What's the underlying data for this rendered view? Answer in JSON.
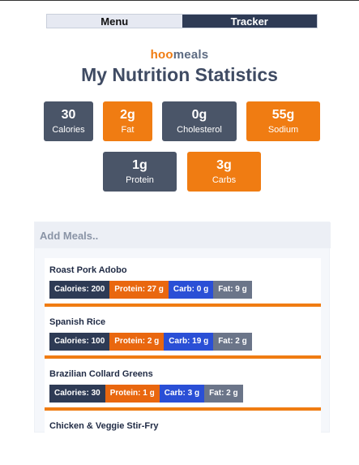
{
  "tabs": {
    "menu": "Menu",
    "tracker": "Tracker"
  },
  "brand": {
    "hoo": "hoo",
    "meals": "meals"
  },
  "page_title": "My Nutrition Statistics",
  "stats": [
    {
      "value": "30",
      "label": "Calories",
      "color": "dark"
    },
    {
      "value": "2g",
      "label": "Fat",
      "color": "orange"
    },
    {
      "value": "0g",
      "label": "Cholesterol",
      "color": "dark"
    },
    {
      "value": "55g",
      "label": "Sodium",
      "color": "orange"
    },
    {
      "value": "1g",
      "label": "Protein",
      "color": "dark"
    },
    {
      "value": "3g",
      "label": "Carbs",
      "color": "orange"
    }
  ],
  "add_meals": {
    "title": "Add Meals.."
  },
  "meals": [
    {
      "name": "Roast Pork Adobo",
      "calories": "Calories: 200",
      "protein": "Protein: 27 g",
      "carb": "Carb: 0 g",
      "fat": "Fat: 9 g"
    },
    {
      "name": "Spanish Rice",
      "calories": "Calories: 100",
      "protein": "Protein: 2 g",
      "carb": "Carb: 19 g",
      "fat": "Fat: 2 g"
    },
    {
      "name": "Brazilian Collard Greens",
      "calories": "Calories: 30",
      "protein": "Protein: 1 g",
      "carb": "Carb: 3 g",
      "fat": "Fat: 2 g"
    },
    {
      "name": "Chicken & Veggie Stir-Fry"
    }
  ],
  "colors": {
    "accent_orange": "#f07c12",
    "dark_slate": "#4a5568",
    "carb_blue": "#2a4fd6"
  }
}
